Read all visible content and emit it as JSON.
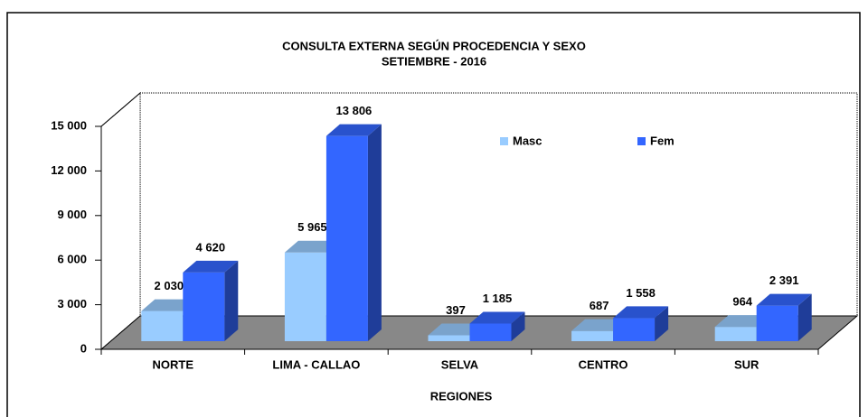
{
  "chart_data": {
    "type": "bar3d",
    "title": "CONSULTA EXTERNA SEGÚN PROCEDENCIA Y SEXO",
    "subtitle": "SETIEMBRE - 2016",
    "x_label": "REGIONES",
    "categories": [
      "NORTE",
      "LIMA - CALLAO",
      "SELVA",
      "CENTRO",
      "SUR"
    ],
    "series": [
      {
        "name": "Masc",
        "color": "#99ccff",
        "values": [
          2030,
          5965,
          397,
          687,
          964
        ],
        "value_labels": [
          "2 030",
          "5 965",
          "397",
          "687",
          "964"
        ]
      },
      {
        "name": "Fem",
        "color": "#3366ff",
        "values": [
          4620,
          13806,
          1185,
          1558,
          2391
        ],
        "value_labels": [
          "4 620",
          "13 806",
          "1 185",
          "1 558",
          "2 391"
        ]
      }
    ],
    "ylim": [
      0,
      15000
    ],
    "yticks": [
      0,
      {
        "value": 3000,
        "label": "3 000"
      },
      {
        "value": 6000,
        "label": "6 000"
      },
      {
        "value": 9000,
        "label": "9 000"
      },
      {
        "value": 12000,
        "label": "12 000"
      },
      {
        "value": 15000,
        "label": "15 000"
      }
    ],
    "legend": "top-right"
  }
}
